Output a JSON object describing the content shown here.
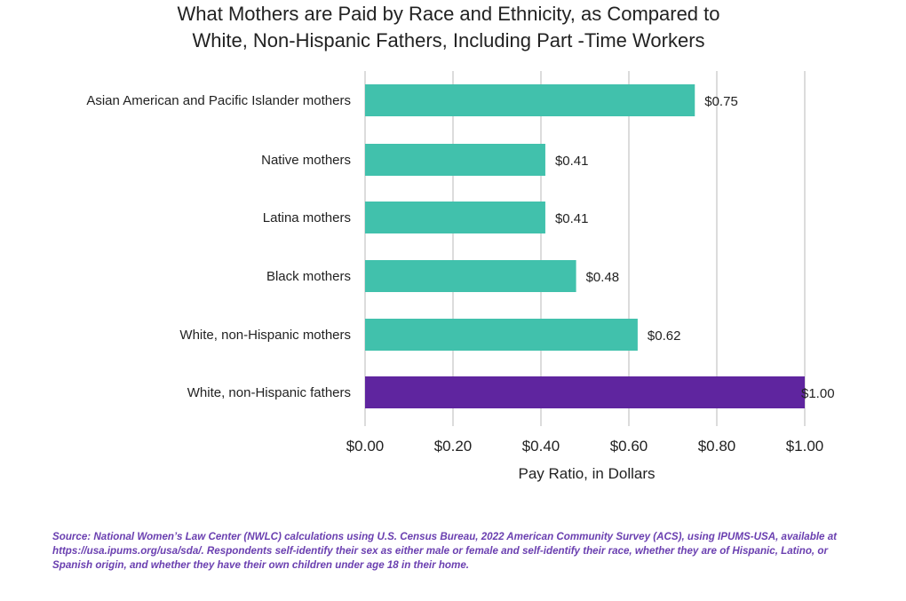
{
  "chart_data": {
    "type": "bar",
    "orientation": "horizontal",
    "title_lines": [
      "What Mothers are Paid by Race and Ethnicity, as Compared to",
      "White, Non-Hispanic Fathers, Including Part -Time Workers"
    ],
    "categories": [
      "Asian American and Pacific Islander mothers",
      "Native mothers",
      "Latina mothers",
      "Black mothers",
      "White, non-Hispanic mothers",
      "White, non-Hispanic fathers"
    ],
    "values": [
      0.75,
      0.41,
      0.41,
      0.48,
      0.62,
      1.0
    ],
    "data_labels": [
      "$0.75",
      "$0.41",
      "$0.41",
      "$0.48",
      "$0.62",
      "$1.00"
    ],
    "bar_colors": [
      "#41c1ac",
      "#41c1ac",
      "#41c1ac",
      "#41c1ac",
      "#41c1ac",
      "#5f259f"
    ],
    "xlabel": "Pay Ratio, in Dollars",
    "xlim": [
      0,
      1
    ],
    "xticks": [
      0,
      0.2,
      0.4,
      0.6,
      0.8,
      1.0
    ],
    "xtick_labels": [
      "$0.00",
      "$0.20",
      "$0.40",
      "$0.60",
      "$0.80",
      "$1.00"
    ],
    "grid": "vertical"
  },
  "source": "Source: National Women’s Law Center (NWLC) calculations using U.S. Census Bureau, 2022 American Community Survey (ACS), using IPUMS-USA, available at https://usa.ipums.org/usa/sda/. Respondents self-identify their sex as either male or female and self-identify their race, whether they are of Hispanic, Latino, or Spanish origin, and whether they have their own children under age 18 in their home."
}
